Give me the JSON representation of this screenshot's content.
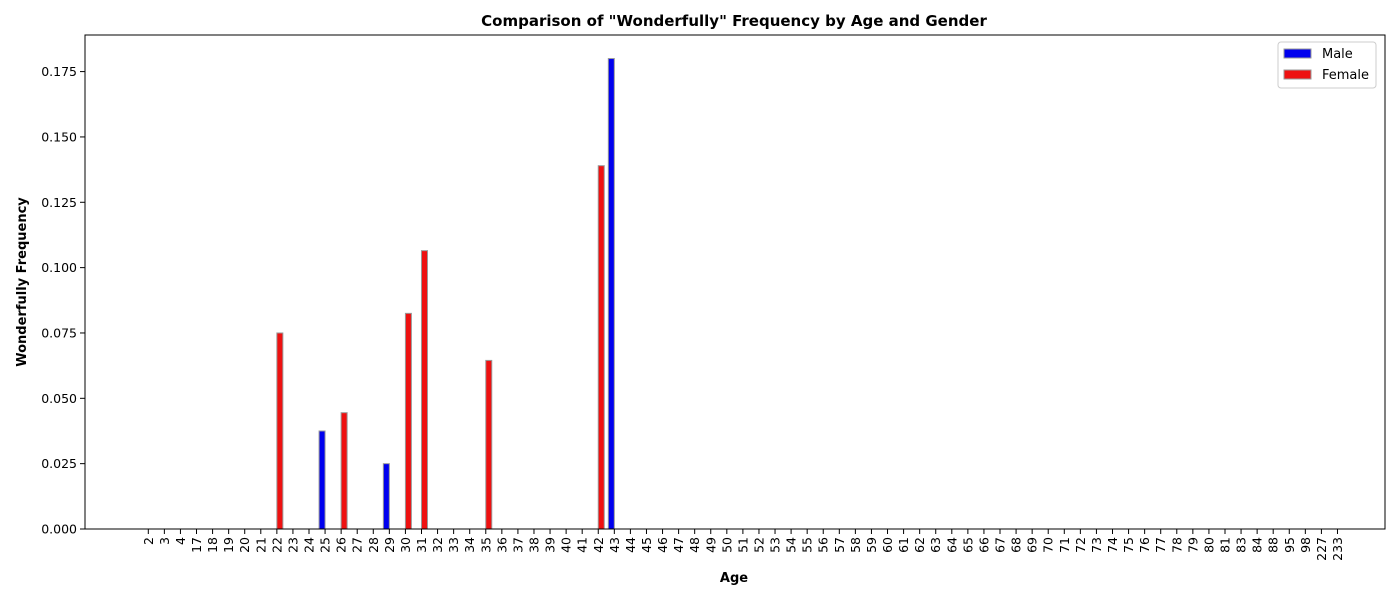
{
  "chart_data": {
    "type": "bar",
    "title": "Comparison of \"Wonderfully\" Frequency by Age and Gender",
    "xlabel": "Age",
    "ylabel": "Wonderfully Frequency",
    "ylim": [
      0,
      0.189
    ],
    "yticks": [
      0.0,
      0.025,
      0.05,
      0.075,
      0.1,
      0.125,
      0.15,
      0.175
    ],
    "ytick_labels": [
      "0.000",
      "0.025",
      "0.050",
      "0.075",
      "0.100",
      "0.125",
      "0.150",
      "0.175"
    ],
    "legend_position": "top-right",
    "grid": false,
    "categories": [
      "2",
      "3",
      "4",
      "17",
      "18",
      "19",
      "20",
      "21",
      "22",
      "23",
      "24",
      "25",
      "26",
      "27",
      "28",
      "29",
      "30",
      "31",
      "32",
      "33",
      "34",
      "35",
      "36",
      "37",
      "38",
      "39",
      "40",
      "41",
      "42",
      "43",
      "44",
      "45",
      "46",
      "47",
      "48",
      "49",
      "50",
      "51",
      "52",
      "53",
      "54",
      "55",
      "56",
      "57",
      "58",
      "59",
      "60",
      "61",
      "62",
      "63",
      "64",
      "65",
      "66",
      "67",
      "68",
      "69",
      "70",
      "71",
      "72",
      "73",
      "74",
      "75",
      "76",
      "77",
      "78",
      "79",
      "80",
      "81",
      "83",
      "84",
      "88",
      "95",
      "98",
      "227",
      "233"
    ],
    "series": [
      {
        "name": "Male",
        "color": "#0000ee",
        "values": [
          0,
          0,
          0,
          0,
          0,
          0,
          0,
          0,
          0,
          0,
          0,
          0.0375,
          0,
          0,
          0,
          0.025,
          0,
          0,
          0,
          0,
          0,
          0,
          0,
          0,
          0,
          0,
          0,
          0,
          0,
          0.18,
          0,
          0,
          0,
          0,
          0,
          0,
          0,
          0,
          0,
          0,
          0,
          0,
          0,
          0,
          0,
          0,
          0,
          0,
          0,
          0,
          0,
          0,
          0,
          0,
          0,
          0,
          0,
          0,
          0,
          0,
          0,
          0,
          0,
          0,
          0,
          0,
          0,
          0,
          0,
          0,
          0,
          0,
          0,
          0,
          0
        ]
      },
      {
        "name": "Female",
        "color": "#ee1111",
        "values": [
          0,
          0,
          0,
          0,
          0,
          0,
          0,
          0,
          0.075,
          0,
          0,
          0,
          0.0445,
          0,
          0,
          0,
          0.0825,
          0.1065,
          0,
          0,
          0,
          0.0645,
          0,
          0,
          0,
          0,
          0,
          0,
          0.139,
          0,
          0,
          0,
          0,
          0,
          0,
          0,
          0,
          0,
          0,
          0,
          0,
          0,
          0,
          0,
          0,
          0,
          0,
          0,
          0,
          0,
          0,
          0,
          0,
          0,
          0,
          0,
          0,
          0,
          0,
          0,
          0,
          0,
          0,
          0,
          0,
          0,
          0,
          0,
          0,
          0,
          0,
          0,
          0,
          0,
          0
        ]
      }
    ]
  }
}
